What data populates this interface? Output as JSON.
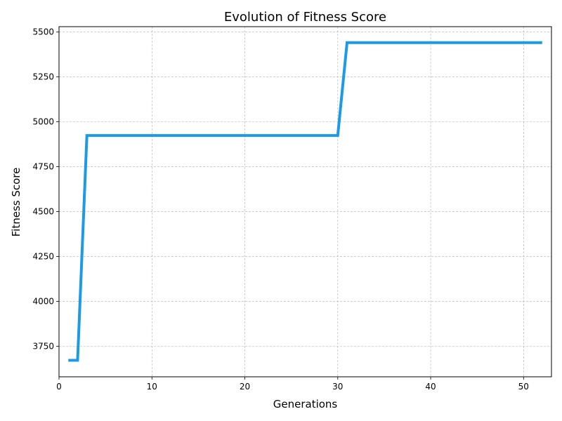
{
  "chart_data": {
    "type": "line",
    "title": "Evolution of Fitness Score",
    "xlabel": "Generations",
    "ylabel": "Fitness Score",
    "xlim": [
      0,
      53
    ],
    "ylim": [
      3580,
      5530
    ],
    "xticks": [
      0,
      10,
      20,
      30,
      40,
      50
    ],
    "yticks": [
      3750,
      4000,
      4250,
      4500,
      4750,
      5000,
      5250,
      5500
    ],
    "grid": true,
    "series": [
      {
        "color": "#1c9ae6",
        "x": [
          1,
          2,
          3,
          30,
          31,
          52
        ],
        "y": [
          3672,
          3672,
          4924,
          4924,
          5441,
          5441
        ]
      }
    ]
  }
}
